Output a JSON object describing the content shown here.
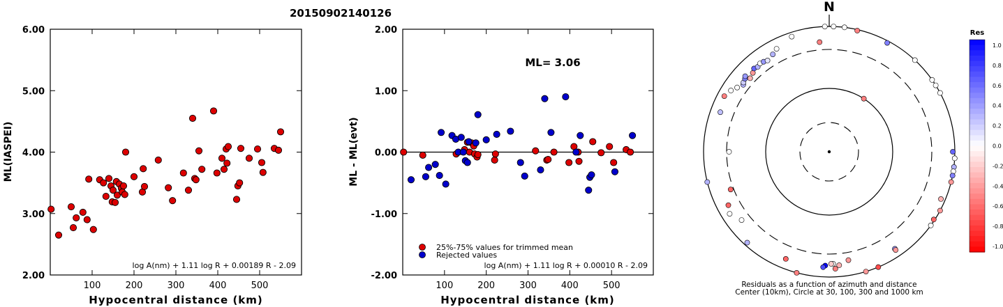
{
  "figure_title": "20150902140126",
  "chart_data": [
    {
      "id": "ml-vs-distance",
      "type": "scatter",
      "xlabel": "Hypocentral distance (km)",
      "ylabel": "ML(IASPEI)",
      "xlim": [
        0,
        600
      ],
      "ylim": [
        2.0,
        6.0
      ],
      "x_ticks": [
        100,
        200,
        300,
        400,
        500
      ],
      "y_ticks": [
        2.0,
        3.0,
        4.0,
        5.0,
        6.0
      ],
      "y_tick_labels": [
        "2.00",
        "3.00",
        "4.00",
        "5.00",
        "6.00"
      ],
      "formula": "log A(nm) + 1.11 log R + 0.00189 R - 2.09",
      "series": [
        {
          "color": "#dd0000",
          "points": [
            [
              2,
              3.07
            ],
            [
              20,
              2.65
            ],
            [
              50,
              3.11
            ],
            [
              55,
              2.77
            ],
            [
              62,
              2.93
            ],
            [
              78,
              3.02
            ],
            [
              88,
              2.9
            ],
            [
              92,
              3.56
            ],
            [
              103,
              2.74
            ],
            [
              118,
              3.55
            ],
            [
              127,
              3.5
            ],
            [
              133,
              3.28
            ],
            [
              140,
              3.57
            ],
            [
              145,
              3.45
            ],
            [
              148,
              3.19
            ],
            [
              150,
              3.38
            ],
            [
              155,
              3.18
            ],
            [
              158,
              3.52
            ],
            [
              160,
              3.3
            ],
            [
              165,
              3.48
            ],
            [
              170,
              3.41
            ],
            [
              172,
              3.35
            ],
            [
              175,
              3.45
            ],
            [
              178,
              3.31
            ],
            [
              180,
              4.0
            ],
            [
              200,
              3.6
            ],
            [
              220,
              3.35
            ],
            [
              222,
              3.73
            ],
            [
              225,
              3.44
            ],
            [
              258,
              3.87
            ],
            [
              282,
              3.42
            ],
            [
              292,
              3.21
            ],
            [
              318,
              3.66
            ],
            [
              330,
              3.38
            ],
            [
              340,
              4.55
            ],
            [
              345,
              3.57
            ],
            [
              348,
              3.55
            ],
            [
              355,
              4.02
            ],
            [
              362,
              3.72
            ],
            [
              390,
              4.67
            ],
            [
              398,
              3.66
            ],
            [
              410,
              3.9
            ],
            [
              415,
              3.72
            ],
            [
              420,
              4.05
            ],
            [
              422,
              3.82
            ],
            [
              425,
              4.09
            ],
            [
              445,
              3.23
            ],
            [
              448,
              3.45
            ],
            [
              452,
              3.5
            ],
            [
              455,
              4.06
            ],
            [
              475,
              3.9
            ],
            [
              495,
              4.05
            ],
            [
              505,
              3.83
            ],
            [
              508,
              3.67
            ],
            [
              535,
              4.06
            ],
            [
              545,
              4.03
            ],
            [
              550,
              4.33
            ]
          ]
        }
      ]
    },
    {
      "id": "residual-vs-distance",
      "type": "scatter",
      "xlabel": "Hypocentral distance (km)",
      "ylabel": "ML - ML(evt)",
      "xlim": [
        0,
        600
      ],
      "ylim": [
        -2.0,
        2.0
      ],
      "x_ticks": [
        100,
        200,
        300,
        400,
        500
      ],
      "y_ticks": [
        -2.0,
        -1.0,
        0.0,
        1.0,
        2.0
      ],
      "y_tick_labels": [
        "-2.00",
        "-1.00",
        "0.00",
        "1.00",
        "2.00"
      ],
      "annotation": "ML= 3.06",
      "formula": "log A(nm) + 1.11 log R + 0.00010 R - 2.09",
      "series": [
        {
          "name": "25%-75% values for trimmed mean",
          "color": "#dd0000",
          "points": [
            [
              2,
              0.0
            ],
            [
              48,
              -0.05
            ],
            [
              128,
              -0.03
            ],
            [
              148,
              0.04
            ],
            [
              155,
              0.16
            ],
            [
              160,
              0.0
            ],
            [
              165,
              0.15
            ],
            [
              170,
              0.1
            ],
            [
              172,
              -0.03
            ],
            [
              178,
              -0.08
            ],
            [
              180,
              -0.04
            ],
            [
              220,
              -0.13
            ],
            [
              222,
              -0.03
            ],
            [
              318,
              0.02
            ],
            [
              345,
              -0.13
            ],
            [
              348,
              -0.12
            ],
            [
              362,
              0.0
            ],
            [
              398,
              -0.17
            ],
            [
              410,
              0.09
            ],
            [
              420,
              0.0
            ],
            [
              422,
              -0.15
            ],
            [
              455,
              0.17
            ],
            [
              475,
              -0.01
            ],
            [
              495,
              0.09
            ],
            [
              505,
              -0.17
            ],
            [
              535,
              0.04
            ],
            [
              545,
              0.0
            ]
          ]
        },
        {
          "name": "Rejected values",
          "color": "#0000cc",
          "points": [
            [
              20,
              -0.45
            ],
            [
              55,
              -0.4
            ],
            [
              62,
              -0.25
            ],
            [
              78,
              -0.2
            ],
            [
              88,
              -0.38
            ],
            [
              92,
              0.32
            ],
            [
              103,
              -0.52
            ],
            [
              118,
              0.27
            ],
            [
              127,
              0.21
            ],
            [
              133,
              0.0
            ],
            [
              140,
              0.24
            ],
            [
              145,
              0.0
            ],
            [
              150,
              -0.14
            ],
            [
              155,
              -0.17
            ],
            [
              158,
              0.17
            ],
            [
              175,
              0.15
            ],
            [
              180,
              0.61
            ],
            [
              200,
              0.2
            ],
            [
              225,
              0.29
            ],
            [
              258,
              0.34
            ],
            [
              282,
              -0.17
            ],
            [
              292,
              -0.39
            ],
            [
              330,
              -0.29
            ],
            [
              340,
              0.87
            ],
            [
              355,
              0.32
            ],
            [
              390,
              0.9
            ],
            [
              415,
              0.0
            ],
            [
              425,
              0.27
            ],
            [
              445,
              -0.62
            ],
            [
              448,
              -0.41
            ],
            [
              452,
              -0.37
            ],
            [
              508,
              -0.32
            ],
            [
              550,
              0.27
            ]
          ]
        }
      ]
    },
    {
      "id": "residual-azimuth",
      "type": "scatter",
      "title": "N",
      "caption_lines": [
        "Residuals as a function of azimuth and distance",
        "Center (10km), Circle at 30, 100, 300 and 1000 km"
      ],
      "colorbar": {
        "label": "Res",
        "ticks": [
          "1.0",
          "0.8",
          "0.6",
          "0.4",
          "0.2",
          "0.0",
          "-0.2",
          "-0.4",
          "-0.6",
          "-0.8",
          "-1.0"
        ],
        "high_color": "#0000ff",
        "low_color": "#ff0000"
      },
      "points_azimuth_deg_distance_km_residual": [
        [
          7,
          1000,
          0.0
        ],
        [
          13,
          950,
          -0.5
        ],
        [
          28,
          900,
          0.5
        ],
        [
          43,
          1000,
          0.0
        ],
        [
          55,
          1000,
          0.0
        ],
        [
          58,
          1000,
          0.0
        ],
        [
          62,
          1000,
          0.0
        ],
        [
          90,
          900,
          0.6
        ],
        [
          93,
          1000,
          0.0
        ],
        [
          97,
          1000,
          0.3
        ],
        [
          99,
          1000,
          0.0
        ],
        [
          101,
          1000,
          0.5
        ],
        [
          104,
          1000,
          -0.4
        ],
        [
          113,
          800,
          -0.3
        ],
        [
          118,
          1000,
          -0.4
        ],
        [
          123,
          950,
          -0.6
        ],
        [
          126,
          1000,
          0.0
        ],
        [
          146,
          650,
          0.4
        ],
        [
          146,
          700,
          -0.4
        ],
        [
          157,
          1000,
          -0.7
        ],
        [
          170,
          450,
          -0.4
        ],
        [
          175,
          550,
          -0.3
        ],
        [
          177,
          650,
          -0.5
        ],
        [
          178,
          500,
          0.0
        ],
        [
          179,
          500,
          -0.2
        ],
        [
          182,
          550,
          1.0
        ],
        [
          183,
          600,
          0.7
        ],
        [
          195,
          1000,
          -0.5
        ],
        [
          202,
          600,
          -0.6
        ],
        [
          222,
          850,
          0.3
        ],
        [
          232,
          470,
          0.0
        ],
        [
          238,
          650,
          0.0
        ],
        [
          242,
          550,
          -0.6
        ],
        [
          249,
          350,
          -0.6
        ],
        [
          256,
          1000,
          0.3
        ],
        [
          270,
          280,
          0.0
        ],
        [
          290,
          600,
          0.25
        ],
        [
          298,
          700,
          -0.5
        ],
        [
          302,
          600,
          0.0
        ],
        [
          305,
          500,
          0.0
        ],
        [
          308,
          420,
          0.3
        ],
        [
          309,
          450,
          0.2
        ],
        [
          311,
          480,
          0.5
        ],
        [
          312,
          520,
          0.4
        ],
        [
          313,
          400,
          -0.3
        ],
        [
          316,
          440,
          -0.4
        ],
        [
          318,
          500,
          0.6
        ],
        [
          320,
          470,
          0.3
        ],
        [
          322,
          500,
          0.0
        ],
        [
          324,
          480,
          0.4
        ],
        [
          326,
          450,
          0.1
        ],
        [
          330,
          510,
          0.3
        ],
        [
          333,
          600,
          0.0
        ],
        [
          342,
          800,
          0.0
        ],
        [
          355,
          450,
          -0.5
        ],
        [
          358,
          1000,
          0.0
        ],
        [
          2,
          1000,
          0.0
        ],
        [
          33,
          100,
          -0.5
        ],
        [
          163,
          1000,
          -0.4
        ]
      ]
    }
  ]
}
